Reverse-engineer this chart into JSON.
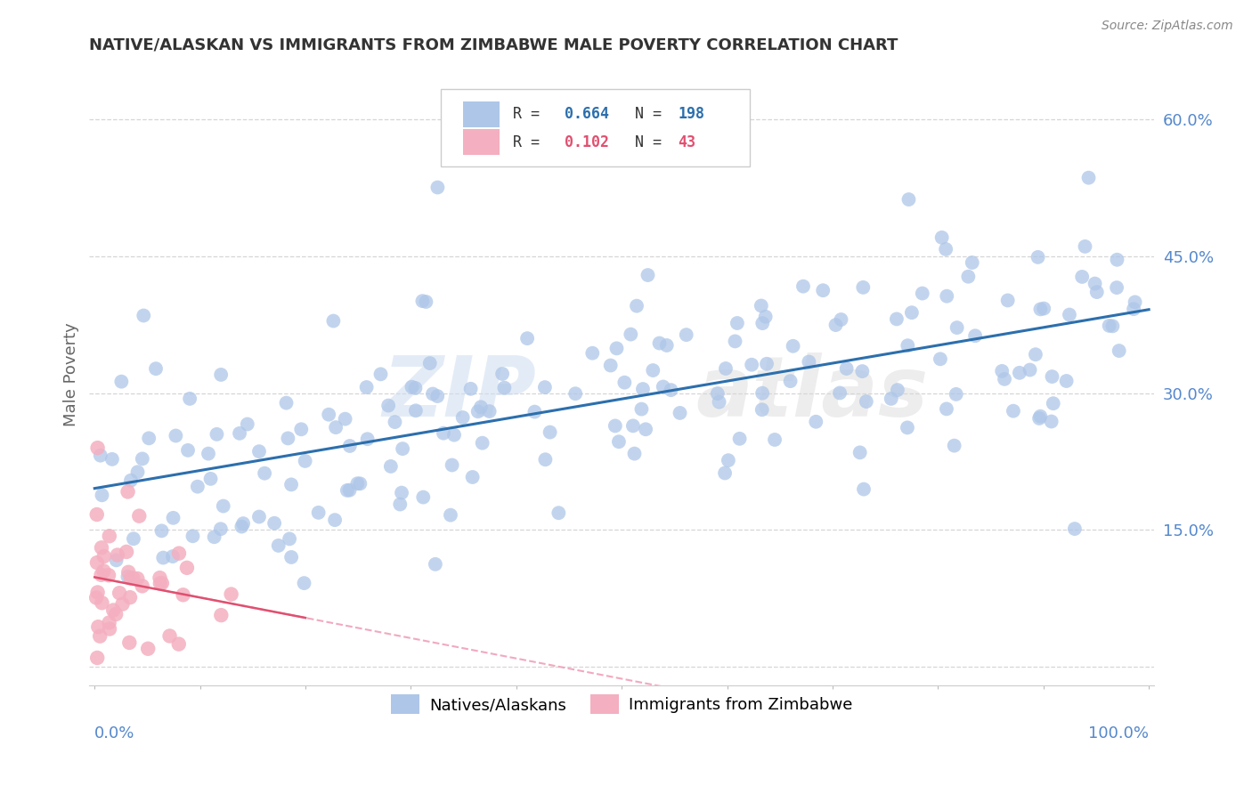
{
  "title": "NATIVE/ALASKAN VS IMMIGRANTS FROM ZIMBABWE MALE POVERTY CORRELATION CHART",
  "source": "Source: ZipAtlas.com",
  "ylabel": "Male Poverty",
  "r_native": 0.664,
  "n_native": 198,
  "r_zimbabwe": 0.102,
  "n_zimbabwe": 43,
  "native_color": "#aec6e8",
  "native_line_color": "#2c6fad",
  "zimbabwe_color": "#f4afc0",
  "zimbabwe_line_color": "#e05070",
  "zimbabwe_dash_color": "#f0a0b8",
  "yticks": [
    0.0,
    0.15,
    0.3,
    0.45,
    0.6
  ],
  "ytick_labels": [
    "",
    "15.0%",
    "30.0%",
    "45.0%",
    "60.0%"
  ],
  "ylim": [
    -0.02,
    0.66
  ],
  "xlim": [
    -0.005,
    1.005
  ],
  "background_color": "#ffffff",
  "grid_color": "#cccccc",
  "title_color": "#333333",
  "legend_label_native": "Natives/Alaskans",
  "legend_label_zimbabwe": "Immigrants from Zimbabwe",
  "native_r_color": "#2c6fad",
  "zimbabwe_r_color": "#e05070",
  "tick_label_color": "#5588cc"
}
